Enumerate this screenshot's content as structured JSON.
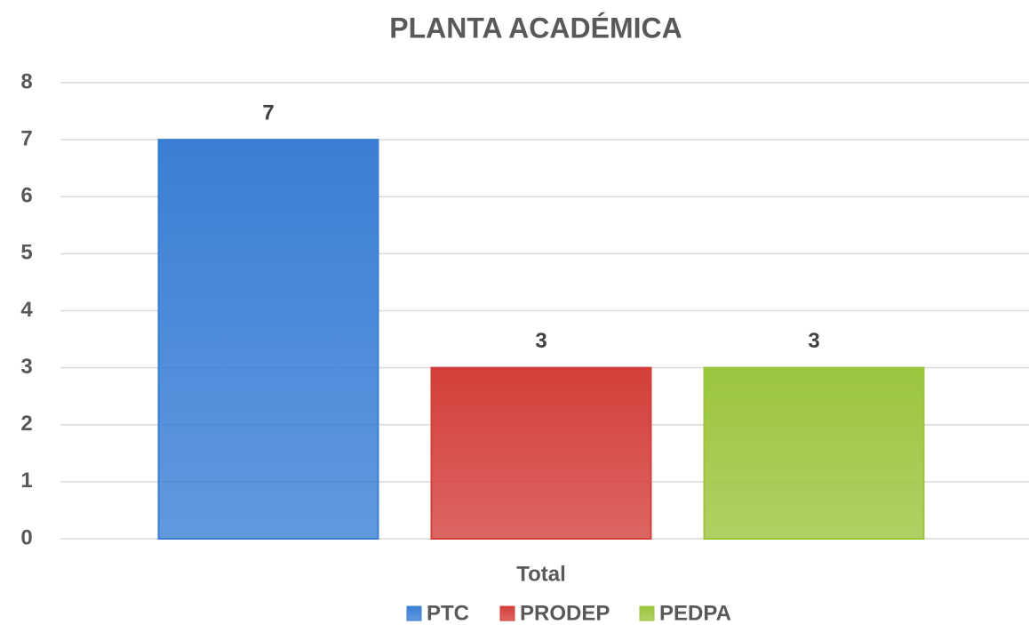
{
  "chart_data": {
    "type": "bar",
    "title": "PLANTA ACADÉMICA",
    "categories": [
      "Total"
    ],
    "series": [
      {
        "name": "PTC",
        "color": "#3a7fd5",
        "values": [
          7
        ]
      },
      {
        "name": "PRODEP",
        "color": "#d43f3a",
        "values": [
          3
        ]
      },
      {
        "name": "PEDPA",
        "color": "#9bc53d",
        "values": [
          3
        ]
      }
    ],
    "ylim": [
      0,
      8
    ],
    "yticks": [
      0,
      1,
      2,
      3,
      4,
      5,
      6,
      7,
      8
    ],
    "grid": true,
    "legend": "bottom"
  }
}
